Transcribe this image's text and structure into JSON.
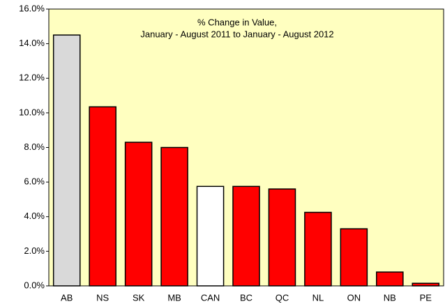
{
  "chart_data": {
    "type": "bar",
    "title": [
      "% Change in Value,",
      "January - August 2011 to January - August 2012"
    ],
    "categories": [
      "AB",
      "NS",
      "SK",
      "MB",
      "CAN",
      "BC",
      "QC",
      "NL",
      "ON",
      "NB",
      "PE"
    ],
    "values": [
      14.5,
      10.35,
      8.3,
      8.0,
      5.75,
      5.75,
      5.6,
      4.25,
      3.3,
      0.8,
      0.15
    ],
    "colors": [
      "#d9d9d9",
      "#ff0000",
      "#ff0000",
      "#ff0000",
      "#ffffff",
      "#ff0000",
      "#ff0000",
      "#ff0000",
      "#ff0000",
      "#ff0000",
      "#ff0000"
    ],
    "background": "#ffffc0",
    "ylim": [
      0,
      16
    ],
    "yticks": [
      {
        "value": 0,
        "label": "0.0%"
      },
      {
        "value": 2,
        "label": "2.0%"
      },
      {
        "value": 4,
        "label": "4.0%"
      },
      {
        "value": 6,
        "label": "6.0%"
      },
      {
        "value": 8,
        "label": "8.0%"
      },
      {
        "value": 10,
        "label": "10.0%"
      },
      {
        "value": 12,
        "label": "12.0%"
      },
      {
        "value": 14,
        "label": "14.0%"
      },
      {
        "value": 16,
        "label": "16.0%"
      }
    ]
  }
}
